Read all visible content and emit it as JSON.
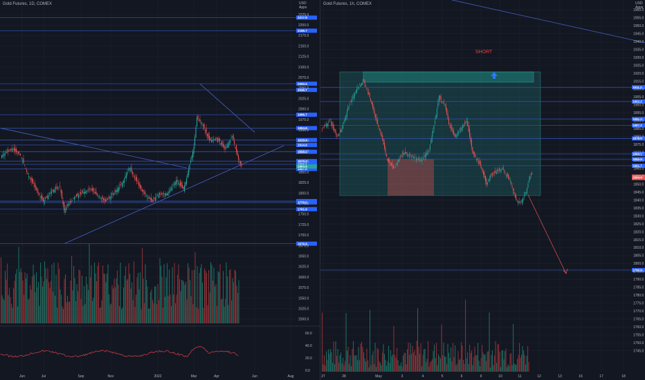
{
  "chart_data": [
    {
      "type": "candlestick",
      "title": "Gold Futures, 1D, COMEX",
      "x_ticks": [
        "Jun",
        "Jul",
        "Sep",
        "Nov",
        "2022",
        "Mar",
        "Apr",
        "Jun",
        "Aug"
      ],
      "y_ticks": [
        2225.0,
        2200.0,
        2175.0,
        2150.0,
        2125.0,
        2100.0,
        2075.0,
        2050.0,
        2025.0,
        2000.0,
        1975.0,
        1950.0,
        1925.0,
        1900.0,
        1875.0,
        1850.0,
        1825.0,
        1800.0,
        1775.0,
        1750.0,
        1725.0,
        1700.0,
        1675.0,
        1650.0,
        1625.0,
        1600.0,
        1575.0,
        1550.0,
        1525.0,
        1500.0
      ],
      "y_range": [
        1500,
        2240
      ],
      "header_labels": [
        "USD",
        "Apps"
      ],
      "levels": [
        {
          "label": "2217.8",
          "value": 2217.8
        },
        {
          "label": "2186.7",
          "value": 2186.7
        },
        {
          "label": "2060.5",
          "value": 2060.5
        },
        {
          "label": "2045.7",
          "value": 2045.7
        },
        {
          "label": "1986.7",
          "value": 1986.7
        },
        {
          "label": "1954.8",
          "value": 1954.8
        },
        {
          "label": "1926.4",
          "value": 1926.4
        },
        {
          "label": "1914.6",
          "value": 1914.6
        },
        {
          "label": "1898.5",
          "value": 1898.5
        },
        {
          "label": "1876.3",
          "value": 1876.3
        },
        {
          "label": "1868.5",
          "value": 1868.5
        },
        {
          "label": "1857.6",
          "value": 1857.6
        },
        {
          "label": "1781.1",
          "value": 1781.1
        },
        {
          "label": "1778.0",
          "value": 1778.0
        },
        {
          "label": "1761.9",
          "value": 1761.9
        },
        {
          "label": "1679.8",
          "value": 1679.8
        }
      ],
      "price_tag": {
        "label": "1863.6",
        "value": 1863.6
      },
      "indicator_axis": [
        "60.0",
        "40.0",
        "20.0",
        "0.0"
      ],
      "grid": true
    },
    {
      "type": "candlestick",
      "title": "Gold Futures, 1h, COMEX",
      "x_ticks": [
        "27",
        "28",
        "May",
        "3",
        "4",
        "5",
        "6",
        "9",
        "10",
        "11",
        "12",
        "13",
        "16",
        "17",
        "18"
      ],
      "y_ticks": [
        1960.0,
        1955.0,
        1950.0,
        1945.0,
        1940.0,
        1935.0,
        1930.0,
        1925.0,
        1920.0,
        1915.0,
        1910.0,
        1905.0,
        1900.0,
        1895.0,
        1890.0,
        1885.0,
        1880.0,
        1875.0,
        1870.0,
        1865.0,
        1860.0,
        1855.0,
        1850.0,
        1845.0,
        1840.0,
        1835.0,
        1830.0,
        1825.0,
        1820.0,
        1815.0,
        1810.0,
        1805.0,
        1800.0,
        1795.0,
        1790.0,
        1785.0,
        1780.0,
        1775.0,
        1770.0,
        1765.0,
        1760.0,
        1755.0,
        1750.0,
        1745.0
      ],
      "y_range": [
        1744,
        1961
      ],
      "header_labels": [
        "USD",
        "Apps"
      ],
      "levels": [
        {
          "label": "1911.2",
          "value": 1911.2
        },
        {
          "label": "1902.2",
          "value": 1902.2
        },
        {
          "label": "1891.2",
          "value": 1891.2
        },
        {
          "label": "1887.2",
          "value": 1887.2
        },
        {
          "label": "1878.9",
          "value": 1878.9
        },
        {
          "label": "1869.1",
          "value": 1869.1
        },
        {
          "label": "1865.9",
          "value": 1865.9
        },
        {
          "label": "1861.7",
          "value": 1861.7
        },
        {
          "label": "1795.9",
          "value": 1795.9
        }
      ],
      "price_tag": {
        "label": "1854.4",
        "value": 1854.4
      },
      "annotation": "SHORT",
      "grid": true
    }
  ]
}
